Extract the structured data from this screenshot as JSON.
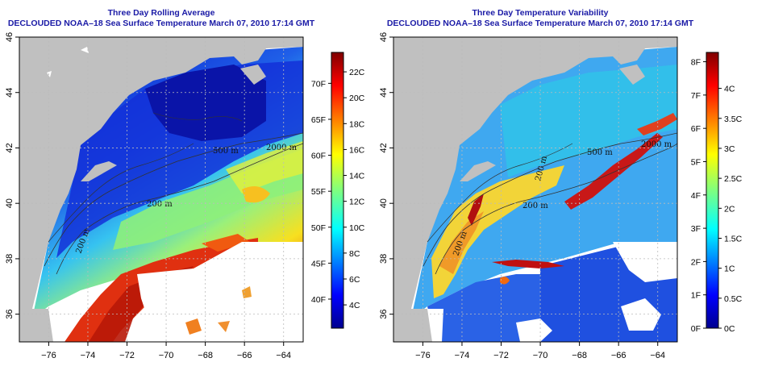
{
  "chart_data": [
    {
      "type": "heatmap",
      "title": "Three Day Rolling Average",
      "subtitle": "DECLOUDED NOAA–18 Sea Surface Temperature March 07, 2010 17:14 GMT",
      "x_ticks": [
        "−76",
        "−74",
        "−72",
        "−70",
        "−68",
        "−66",
        "−64"
      ],
      "y_ticks": [
        "36",
        "38",
        "40",
        "42",
        "44",
        "46"
      ],
      "xlim": [
        -77.5,
        -63
      ],
      "ylim": [
        35,
        46
      ],
      "contour_labels": [
        "2000 m",
        "200 m",
        "500 m",
        "200 m"
      ],
      "colorbar": {
        "celsius_ticks": [
          "4C",
          "6C",
          "8C",
          "10C",
          "12C",
          "14C",
          "16C",
          "18C",
          "20C",
          "22C"
        ],
        "celsius_values": [
          4,
          6,
          8,
          10,
          12,
          14,
          16,
          18,
          20,
          22
        ],
        "fahrenheit_ticks": [
          "40F",
          "45F",
          "50F",
          "55F",
          "60F",
          "65F",
          "70F"
        ],
        "fahrenheit_values": [
          40,
          45,
          50,
          55,
          60,
          65,
          70
        ],
        "range_c": [
          2.2,
          23.5
        ]
      },
      "grid": true
    },
    {
      "type": "heatmap",
      "title": "Three Day Temperature Variability",
      "subtitle": "DECLOUDED NOAA–18 Sea Surface Temperature March 07, 2010 17:14 GMT",
      "x_ticks": [
        "−76",
        "−74",
        "−72",
        "−70",
        "−68",
        "−66",
        "−64"
      ],
      "y_ticks": [
        "36",
        "38",
        "40",
        "42",
        "44",
        "46"
      ],
      "xlim": [
        -77.5,
        -63
      ],
      "ylim": [
        35,
        46
      ],
      "contour_labels": [
        "2000 m",
        "200 m",
        "500 m",
        "200 m",
        "200 m"
      ],
      "colorbar": {
        "fahrenheit_ticks": [
          "0F",
          "1F",
          "2F",
          "3F",
          "4F",
          "5F",
          "6F",
          "7F",
          "8F"
        ],
        "fahrenheit_values": [
          0,
          1,
          2,
          3,
          4,
          5,
          6,
          7,
          8
        ],
        "celsius_ticks": [
          "0C",
          "0.5C",
          "1C",
          "1.5C",
          "2C",
          "2.5C",
          "3C",
          "3.5C",
          "4C"
        ],
        "celsius_values": [
          0,
          0.5,
          1,
          1.5,
          2,
          2.5,
          3,
          3.5,
          4
        ],
        "range_c": [
          0,
          4.6
        ]
      },
      "grid": true
    }
  ],
  "colors": {
    "title": "#1a1aa6",
    "land": "#c0c0c0",
    "no_data": "#ffffff"
  }
}
